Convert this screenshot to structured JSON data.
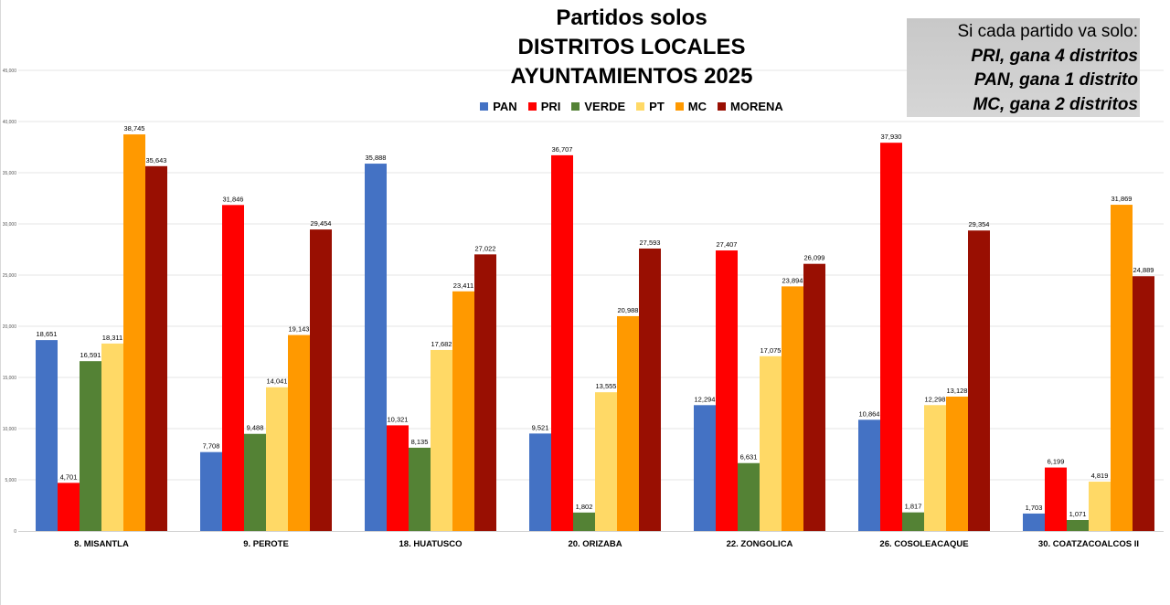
{
  "chart_data": {
    "type": "bar",
    "title": [
      "Partidos solos",
      "DISTRITOS LOCALES",
      "AYUNTAMIENTOS 2025"
    ],
    "xlabel": "",
    "ylabel": "",
    "ylim": [
      0,
      45000
    ],
    "grid": true,
    "legend_position": "top-center",
    "y_ticks": [
      {
        "value": 0,
        "label": "0"
      },
      {
        "value": 5000,
        "label": "5,000"
      },
      {
        "value": 10000,
        "label": "10,000"
      },
      {
        "value": 15000,
        "label": "15,000"
      },
      {
        "value": 20000,
        "label": "20,000"
      },
      {
        "value": 25000,
        "label": "25,000"
      },
      {
        "value": 30000,
        "label": "30,000"
      },
      {
        "value": 35000,
        "label": "35,000"
      },
      {
        "value": 40000,
        "label": "40,000"
      },
      {
        "value": 45000,
        "label": "45,000"
      }
    ],
    "categories": [
      "8. MISANTLA",
      "9. PEROTE",
      "18. HUATUSCO",
      "20. ORIZABA",
      "22. ZONGOLICA",
      "26. COSOLEACAQUE",
      "30. COATZACOALCOS  II"
    ],
    "series": [
      {
        "name": "PAN",
        "color": "#4472c4",
        "values": [
          18651,
          7708,
          35888,
          9521,
          12294,
          10864,
          1703
        ],
        "labels": [
          "18,651",
          "7,708",
          "35,888",
          "9,521",
          "12,294",
          "10,864",
          "1,703"
        ]
      },
      {
        "name": "PRI",
        "color": "#ff0000",
        "values": [
          4701,
          31846,
          10321,
          36707,
          27407,
          37930,
          6199
        ],
        "labels": [
          "4,701",
          "31,846",
          "10,321",
          "36,707",
          "27,407",
          "37,930",
          "6,199"
        ]
      },
      {
        "name": "VERDE",
        "color": "#548235",
        "values": [
          16591,
          9488,
          8135,
          1802,
          6631,
          1817,
          1071
        ],
        "labels": [
          "16,591",
          "9,488",
          "8,135",
          "1,802",
          "6,631",
          "1,817",
          "1,071"
        ]
      },
      {
        "name": "PT",
        "color": "#ffd966",
        "values": [
          18311,
          14041,
          17682,
          13555,
          17075,
          12298,
          4819
        ],
        "labels": [
          "18,311",
          "14,041",
          "17,682",
          "13,555",
          "17,075",
          "12,298",
          "4,819"
        ]
      },
      {
        "name": "MC",
        "color": "#ff9900",
        "values": [
          38745,
          19143,
          23411,
          20988,
          23894,
          13128,
          31869
        ],
        "labels": [
          "38,745",
          "19,143",
          "23,411",
          "20,988",
          "23,894",
          "13,128",
          "31,869"
        ]
      },
      {
        "name": "MORENA",
        "color": "#990f02",
        "values": [
          35643,
          29454,
          27022,
          27593,
          26099,
          29354,
          24889
        ],
        "labels": [
          "35,643",
          "29,454",
          "27,022",
          "27,593",
          "26,099",
          "29,354",
          "24,889"
        ]
      }
    ]
  },
  "note": {
    "lines": [
      "Si cada partido va solo:",
      "PRI, gana 4 distritos",
      "PAN, gana 1 distrito",
      "MC, gana 2 distritos"
    ]
  }
}
